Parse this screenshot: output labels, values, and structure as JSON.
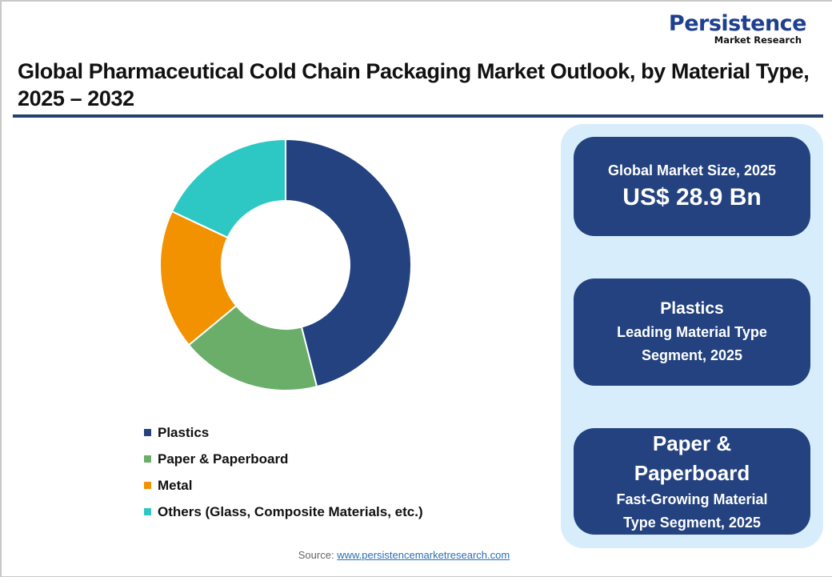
{
  "brand": {
    "name": "Persistence",
    "sub": "Market Research"
  },
  "header": {
    "title": "Global Pharmaceutical Cold Chain Packaging Market Outlook, by Material Type, 2025 – 2032"
  },
  "legend": [
    {
      "label": "Plastics",
      "color": "#23427f"
    },
    {
      "label": "Paper & Paperboard",
      "color": "#6aae6a"
    },
    {
      "label": "Metal",
      "color": "#f39200"
    },
    {
      "label": "Others (Glass, Composite Materials, etc.)",
      "color": "#2ec8c4"
    }
  ],
  "cards": {
    "market_size": {
      "label": "Global Market Size, 2025",
      "value": "US$ 28.9 Bn"
    },
    "leading": {
      "segment": "Plastics",
      "line1": "Leading Material Type",
      "line2": "Segment, 2025"
    },
    "fast_growing": {
      "segment_line1": "Paper &",
      "segment_line2": "Paperboard",
      "line1": "Fast-Growing Material",
      "line2": "Type Segment, 2025"
    }
  },
  "source": {
    "prefix": "Source: ",
    "link": "www.persistencemarketresearch.com"
  },
  "chart_data": {
    "type": "pie",
    "variant": "donut",
    "title": "Global Pharmaceutical Cold Chain Packaging Market Outlook, by Material Type, 2025 – 2032",
    "categories": [
      "Plastics",
      "Paper & Paperboard",
      "Metal",
      "Others (Glass, Composite Materials, etc.)"
    ],
    "values": [
      46,
      18,
      18,
      18
    ],
    "unit": "% share (estimated from slice angles)",
    "colors": [
      "#23427f",
      "#6aae6a",
      "#f39200",
      "#2ec8c4"
    ],
    "legend_position": "bottom",
    "start_angle": "12 o'clock, clockwise"
  }
}
